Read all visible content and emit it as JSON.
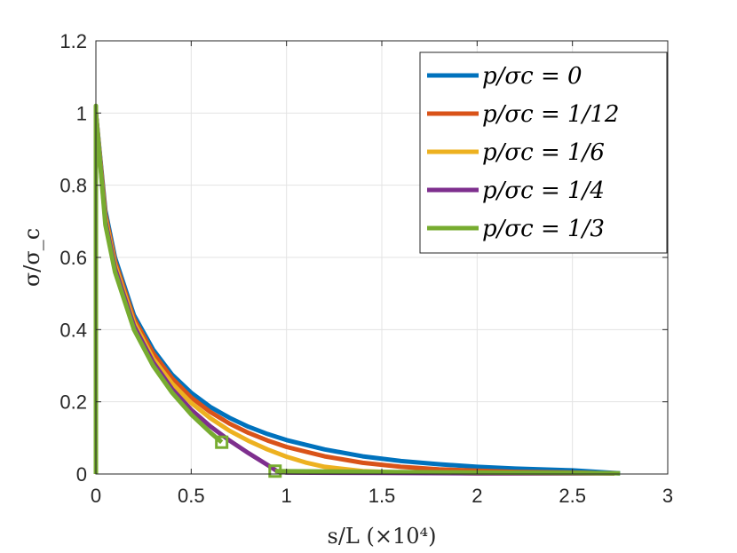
{
  "chart_data": {
    "type": "line",
    "xlabel": "s/L (×10⁴)",
    "ylabel": "σ/σ_c",
    "xlim": [
      0,
      3
    ],
    "ylim": [
      0,
      1.2
    ],
    "xticks": [
      "0",
      "0.5",
      "1",
      "1.5",
      "2",
      "2.5",
      "3"
    ],
    "yticks": [
      "0",
      "0.2",
      "0.4",
      "0.6",
      "0.8",
      "1",
      "1.2"
    ],
    "grid": true,
    "legend_position": "top-right",
    "series": [
      {
        "name": "p/σc = 0",
        "color": "#0072BD",
        "x": [
          0,
          0.05,
          0.1,
          0.2,
          0.3,
          0.4,
          0.5,
          0.6,
          0.7,
          0.8,
          0.9,
          1.0,
          1.2,
          1.4,
          1.6,
          1.8,
          2.0,
          2.2,
          2.5,
          2.75
        ],
        "y": [
          1.0,
          0.73,
          0.6,
          0.44,
          0.345,
          0.275,
          0.225,
          0.186,
          0.156,
          0.131,
          0.111,
          0.094,
          0.068,
          0.049,
          0.036,
          0.027,
          0.02,
          0.015,
          0.01,
          0.002
        ]
      },
      {
        "name": "p/σc = 1/12",
        "color": "#D95319",
        "x": [
          0,
          0.05,
          0.1,
          0.2,
          0.3,
          0.4,
          0.5,
          0.6,
          0.7,
          0.8,
          0.9,
          1.0,
          1.2,
          1.4,
          1.6,
          1.8,
          2.0,
          2.2,
          2.5,
          2.72
        ],
        "y": [
          1.0,
          0.72,
          0.59,
          0.43,
          0.335,
          0.265,
          0.212,
          0.172,
          0.14,
          0.114,
          0.093,
          0.075,
          0.049,
          0.031,
          0.02,
          0.013,
          0.009,
          0.006,
          0.004,
          0.002
        ]
      },
      {
        "name": "p/σc = 1/6",
        "color": "#EDB120",
        "x": [
          0,
          0.05,
          0.1,
          0.2,
          0.3,
          0.4,
          0.5,
          0.6,
          0.7,
          0.8,
          0.9,
          1.0,
          1.1,
          1.2,
          1.4,
          1.6,
          1.8,
          2.0,
          2.4,
          2.72
        ],
        "y": [
          1.0,
          0.71,
          0.58,
          0.42,
          0.32,
          0.25,
          0.197,
          0.155,
          0.12,
          0.092,
          0.068,
          0.048,
          0.032,
          0.02,
          0.008,
          0.004,
          0.003,
          0.002,
          0.002,
          0.002
        ]
      },
      {
        "name": "p/σc = 1/4",
        "color": "#7E2F8E",
        "x": [
          0,
          0.05,
          0.1,
          0.2,
          0.3,
          0.4,
          0.5,
          0.6,
          0.7,
          0.8,
          0.9,
          0.95,
          1.0,
          1.5,
          2.0,
          2.5,
          2.72
        ],
        "y": [
          1.0,
          0.7,
          0.57,
          0.41,
          0.31,
          0.235,
          0.178,
          0.132,
          0.093,
          0.058,
          0.025,
          0.008,
          0.004,
          0.003,
          0.002,
          0.002,
          0.002
        ]
      },
      {
        "name": "p/σc = 1/3",
        "color": "#77AC30",
        "x": [
          0,
          0,
          0,
          0.05,
          0.1,
          0.2,
          0.3,
          0.4,
          0.5,
          0.6,
          0.66
        ],
        "y": [
          0.0,
          1.02,
          1.0,
          0.69,
          0.56,
          0.4,
          0.3,
          0.225,
          0.165,
          0.115,
          0.088
        ],
        "markers": [
          {
            "x": 0.66,
            "y": 0.088
          }
        ]
      },
      {
        "name": "",
        "color": "#77AC30",
        "x": [
          0.94,
          1.5,
          2.0,
          2.5,
          2.75
        ],
        "y": [
          0.008,
          0.006,
          0.004,
          0.003,
          0.002
        ],
        "markers": [
          {
            "x": 0.94,
            "y": 0.008
          }
        ]
      }
    ]
  }
}
